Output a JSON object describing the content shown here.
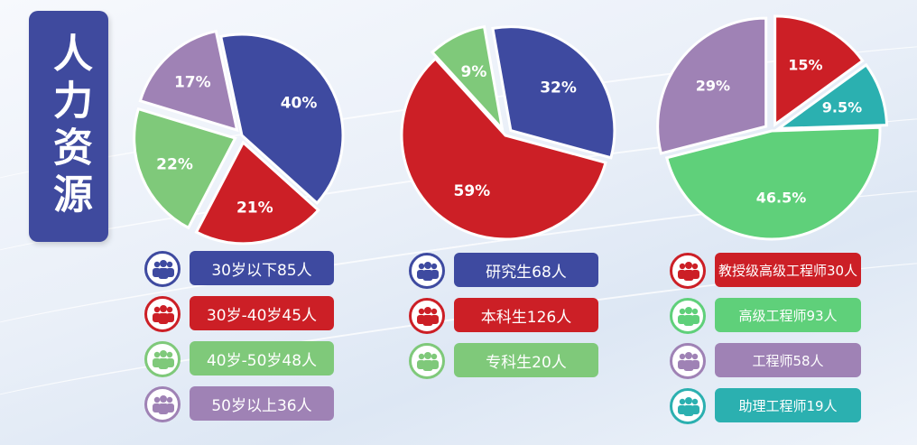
{
  "title": "人力资源",
  "chart_data": [
    {
      "type": "pie",
      "slices": [
        {
          "label": "40%",
          "value": 40,
          "color": "#3e4aa0",
          "legend": "30岁以下85人"
        },
        {
          "label": "21%",
          "value": 21,
          "color": "#cc1f26",
          "legend": "30岁-40岁45人"
        },
        {
          "label": "22%",
          "value": 22,
          "color": "#7fc97a",
          "legend": "40岁-50岁48人"
        },
        {
          "label": "17%",
          "value": 17,
          "color": "#9f82b5",
          "legend": "50岁以上36人"
        }
      ]
    },
    {
      "type": "pie",
      "slices": [
        {
          "label": "32%",
          "value": 32,
          "color": "#3e4aa0",
          "legend": "研究生68人"
        },
        {
          "label": "59%",
          "value": 59,
          "color": "#cc1f26",
          "legend": "本科生126人"
        },
        {
          "label": "9%",
          "value": 9,
          "color": "#7fc97a",
          "legend": "专科生20人"
        }
      ]
    },
    {
      "type": "pie",
      "slices": [
        {
          "label": "15%",
          "value": 15,
          "color": "#cc1f26",
          "legend": "教授级高级工程师30人"
        },
        {
          "label": "9.5%",
          "value": 9.5,
          "color": "#2bb0b0",
          "legend": "助理工程师19人"
        },
        {
          "label": "46.5%",
          "value": 46.5,
          "color": "#5fd07a",
          "legend": "高级工程师93人"
        },
        {
          "label": "29%",
          "value": 29,
          "color": "#9f82b5",
          "legend": "工程师58人"
        }
      ],
      "legend_order": [
        "教授级高级工程师30人",
        "高级工程师93人",
        "工程师58人",
        "助理工程师19人"
      ]
    }
  ]
}
